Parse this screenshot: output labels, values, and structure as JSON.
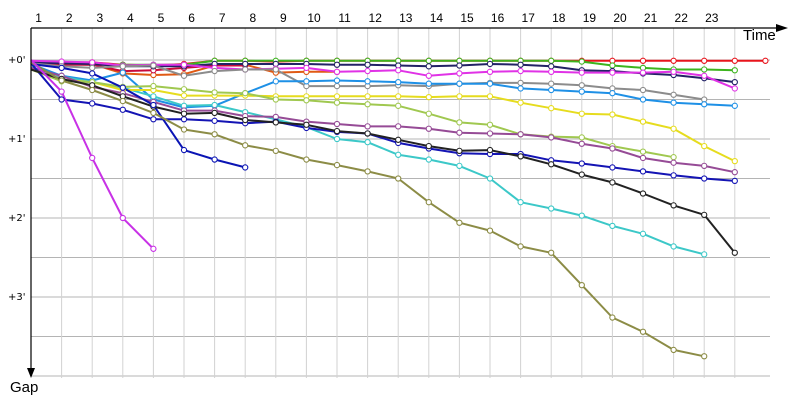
{
  "chart_data": {
    "type": "line",
    "title": "",
    "xlabel": "Time",
    "ylabel": "Gap",
    "x_ticks": [
      "1",
      "2",
      "3",
      "4",
      "5",
      "6",
      "7",
      "8",
      "9",
      "10",
      "11",
      "12",
      "13",
      "14",
      "15",
      "16",
      "17",
      "18",
      "19",
      "20",
      "21",
      "22",
      "23"
    ],
    "y_ticks": [
      "+0'",
      "+1'",
      "+2'",
      "+3'"
    ],
    "ylim_minutes": [
      0,
      4
    ],
    "y_direction": "down",
    "grid": true,
    "series": [
      {
        "color": "#e8141c",
        "values": [
          0.02,
          0.03,
          0.03,
          0.06,
          0.07,
          0.05,
          0.01,
          0.01,
          0.02,
          0.01,
          0.01,
          0.01,
          0.01,
          0.01,
          0.01,
          0.01,
          0.01,
          0.01,
          0.01,
          0.01,
          0.01,
          0.01,
          0.01,
          0.01,
          0.01
        ]
      },
      {
        "color": "#3cb41e",
        "values": [
          0.03,
          0.05,
          0.06,
          0.06,
          0.06,
          0.06,
          0.01,
          0.01,
          0.01,
          0.01,
          0.01,
          0.01,
          0.01,
          0.01,
          0.01,
          0.01,
          0.01,
          0.01,
          0.02,
          0.07,
          0.1,
          0.12,
          0.12,
          0.13
        ]
      },
      {
        "color": "#e05a14",
        "values": [
          0.05,
          0.05,
          0.05,
          0.17,
          0.19,
          0.18,
          0.07,
          0.06,
          0.16,
          0.15,
          0.15
        ]
      },
      {
        "color": "#c80a3c",
        "values": [
          0.02,
          0.06,
          0.06,
          0.14,
          0.13,
          0.1,
          0.07,
          0.07
        ]
      },
      {
        "color": "#222266",
        "values": [
          0.03,
          0.04,
          0.05,
          0.08,
          0.08,
          0.08,
          0.05,
          0.05,
          0.05,
          0.05,
          0.06,
          0.06,
          0.07,
          0.08,
          0.07,
          0.05,
          0.06,
          0.08,
          0.13,
          0.14,
          0.17,
          0.19,
          0.23,
          0.28
        ]
      },
      {
        "color": "#e032e6",
        "values": [
          0.01,
          0.02,
          0.03,
          0.07,
          0.06,
          0.06,
          0.1,
          0.12,
          0.11,
          0.1,
          0.15,
          0.14,
          0.13,
          0.2,
          0.17,
          0.15,
          0.14,
          0.15,
          0.16,
          0.16,
          0.16,
          0.15,
          0.2,
          0.36
        ]
      },
      {
        "color": "#8c8c8c",
        "values": [
          0.04,
          0.08,
          0.1,
          0.08,
          0.07,
          0.2,
          0.14,
          0.12,
          0.12,
          0.33,
          0.33,
          0.33,
          0.32,
          0.33,
          0.3,
          0.29,
          0.29,
          0.3,
          0.32,
          0.36,
          0.38,
          0.44,
          0.5
        ]
      },
      {
        "color": "#1e90e6",
        "values": [
          0.05,
          0.2,
          0.26,
          0.16,
          0.5,
          0.6,
          0.58,
          0.42,
          0.27,
          0.27,
          0.26,
          0.27,
          0.28,
          0.3,
          0.3,
          0.3,
          0.36,
          0.38,
          0.4,
          0.42,
          0.5,
          0.54,
          0.56,
          0.58
        ]
      },
      {
        "color": "#3cc8c8",
        "values": [
          0.09,
          0.21,
          0.28,
          0.35,
          0.46,
          0.58,
          0.57,
          0.66,
          0.75,
          0.85,
          1.0,
          1.04,
          1.2,
          1.26,
          1.34,
          1.5,
          1.8,
          1.88,
          1.97,
          2.1,
          2.2,
          2.36,
          2.46
        ]
      },
      {
        "color": "#e6dc1e",
        "values": [
          0.12,
          0.25,
          0.28,
          0.38,
          0.38,
          0.45,
          0.45,
          0.45,
          0.46,
          0.46,
          0.46,
          0.46,
          0.46,
          0.47,
          0.46,
          0.46,
          0.54,
          0.61,
          0.68,
          0.69,
          0.78,
          0.87,
          1.09,
          1.28
        ]
      },
      {
        "color": "#a0c850",
        "values": [
          0.12,
          0.27,
          0.28,
          0.34,
          0.33,
          0.37,
          0.41,
          0.42,
          0.5,
          0.51,
          0.54,
          0.56,
          0.58,
          0.68,
          0.79,
          0.82,
          0.94,
          0.97,
          0.98,
          1.09,
          1.16,
          1.23
        ]
      },
      {
        "color": "#964b96",
        "values": [
          0.1,
          0.2,
          0.34,
          0.42,
          0.53,
          0.64,
          0.64,
          0.71,
          0.72,
          0.78,
          0.81,
          0.84,
          0.84,
          0.87,
          0.92,
          0.93,
          0.94,
          0.98,
          1.06,
          1.12,
          1.24,
          1.3,
          1.34,
          1.42
        ]
      },
      {
        "color": "#1414b4",
        "values": [
          0.04,
          0.5,
          0.55,
          0.63,
          0.75,
          0.75,
          0.77,
          0.8,
          0.78,
          0.86,
          0.91,
          0.93,
          1.05,
          1.12,
          1.18,
          1.19,
          1.19,
          1.27,
          1.31,
          1.36,
          1.41,
          1.46,
          1.5,
          1.53
        ]
      },
      {
        "color": "#222222",
        "values": [
          0.12,
          0.24,
          0.32,
          0.46,
          0.59,
          0.68,
          0.67,
          0.76,
          0.79,
          0.82,
          0.9,
          0.93,
          1.01,
          1.09,
          1.15,
          1.14,
          1.22,
          1.32,
          1.45,
          1.55,
          1.69,
          1.84,
          1.96,
          2.44
        ]
      },
      {
        "color": "#0a14b4",
        "values": [
          0.05,
          0.1,
          0.17,
          0.35,
          0.57,
          1.14,
          1.26,
          1.36
        ]
      },
      {
        "color": "#8c8c46",
        "values": [
          0.03,
          0.26,
          0.38,
          0.52,
          0.67,
          0.88,
          0.94,
          1.08,
          1.15,
          1.26,
          1.33,
          1.41,
          1.5,
          1.8,
          2.06,
          2.16,
          2.36,
          2.44,
          2.85,
          3.26,
          3.44,
          3.67,
          3.75
        ]
      },
      {
        "color": "#c832e6",
        "values": [
          0.0,
          0.4,
          1.24,
          2.0,
          2.39
        ]
      }
    ]
  }
}
